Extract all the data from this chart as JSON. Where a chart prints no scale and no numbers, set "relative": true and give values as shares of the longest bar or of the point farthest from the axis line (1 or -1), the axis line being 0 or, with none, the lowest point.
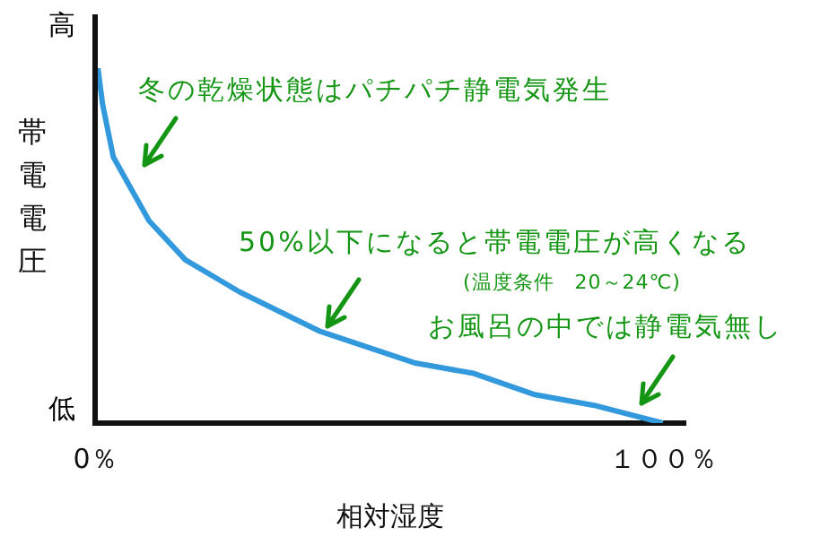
{
  "chart_data": {
    "type": "line",
    "relative": true,
    "xlabel": "相対湿度",
    "ylabel": "帯電電圧",
    "x": [
      0.5,
      1.3,
      3.2,
      6,
      9.5,
      15.9,
      25.4,
      39.4,
      56.2,
      66.7,
      77.5,
      87.9,
      100
    ],
    "series": [
      {
        "color": "#3399dd",
        "values": [
          1,
          0.9,
          0.75,
          0.67,
          0.57,
          0.46,
          0.37,
          0.26,
          0.17,
          0.14,
          0.08,
          0.05,
          0
        ]
      }
    ],
    "xlim": [
      0,
      104
    ],
    "xticks": [
      {
        "value": 0,
        "label": "0％"
      },
      {
        "value": 100,
        "label": "１００％"
      }
    ],
    "grid": false,
    "legend": false,
    "marker": "none",
    "line_style": "solid",
    "tick_labels": "x",
    "annotations": [
      {
        "text": "冬の乾燥状態はパチパチ静電気発生",
        "x": 6,
        "y": 0.67
      },
      "50%以下になると帯電電圧が高くなる",
      "(温度条件　20～24℃)",
      {
        "text": "お風呂の中では静電気無し",
        "x": 96,
        "y": 0.02
      },
      "高",
      "低"
    ]
  }
}
